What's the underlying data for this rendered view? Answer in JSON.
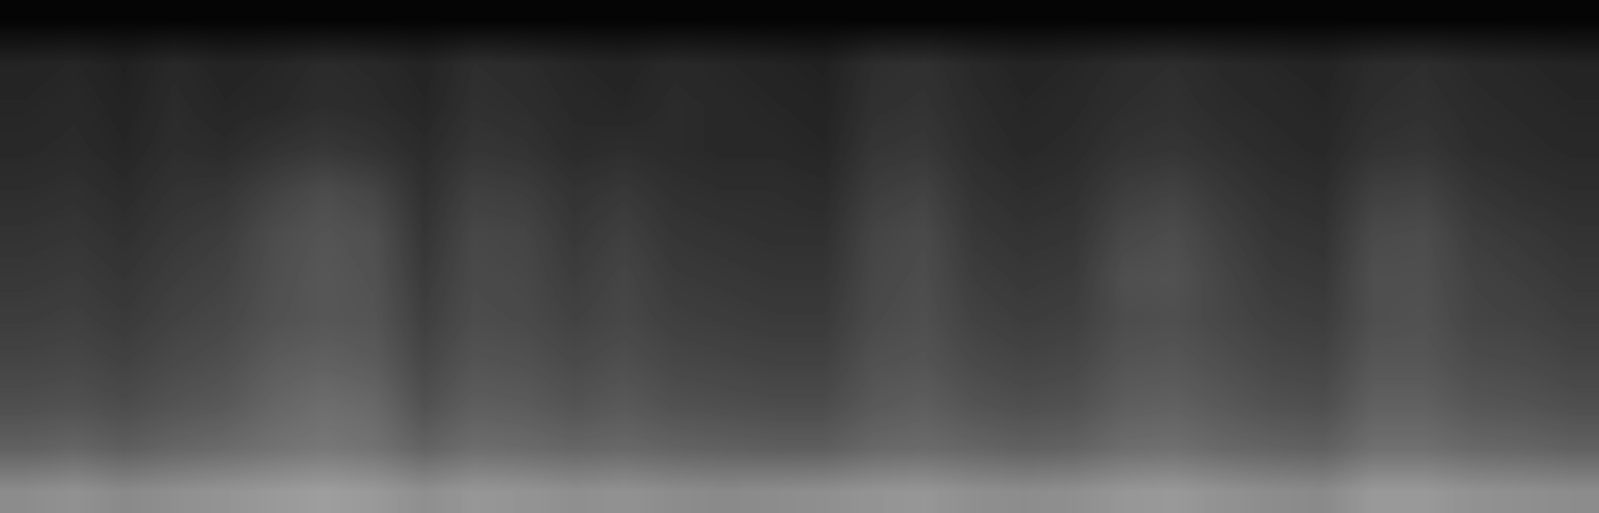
{
  "chart_data": {
    "type": "heatmap",
    "tick_labels": false,
    "color": "gray",
    "zlim": [
      0,
      100
    ],
    "cells": [
      [
        2,
        2,
        2,
        2,
        2,
        2,
        2,
        2,
        2,
        2,
        2,
        2,
        2,
        2,
        2,
        2,
        2,
        2,
        2,
        2,
        2,
        2,
        2,
        2,
        2,
        2,
        2,
        2,
        2,
        2,
        2,
        2
      ],
      [
        14,
        15,
        13,
        16,
        14,
        15,
        17,
        16,
        14,
        18,
        17,
        15,
        14,
        16,
        15,
        14,
        13,
        18,
        19,
        16,
        14,
        15,
        17,
        18,
        16,
        15,
        14,
        17,
        18,
        16,
        15,
        14
      ],
      [
        15,
        16,
        14,
        17,
        15,
        16,
        18,
        17,
        15,
        19,
        18,
        16,
        15,
        17,
        16,
        15,
        14,
        19,
        20,
        17,
        15,
        16,
        18,
        19,
        17,
        16,
        15,
        18,
        19,
        17,
        16,
        15
      ],
      [
        16,
        17,
        15,
        18,
        17,
        20,
        22,
        20,
        17,
        21,
        20,
        17,
        18,
        17,
        16,
        16,
        15,
        21,
        22,
        18,
        16,
        17,
        20,
        21,
        19,
        17,
        16,
        20,
        21,
        18,
        17,
        16
      ],
      [
        18,
        19,
        17,
        20,
        21,
        26,
        30,
        27,
        19,
        25,
        24,
        20,
        22,
        19,
        18,
        18,
        17,
        24,
        26,
        20,
        18,
        19,
        24,
        26,
        22,
        19,
        18,
        25,
        26,
        21,
        19,
        18
      ],
      [
        20,
        21,
        19,
        22,
        24,
        30,
        33,
        31,
        21,
        28,
        27,
        22,
        25,
        21,
        20,
        19,
        19,
        27,
        29,
        22,
        20,
        21,
        28,
        30,
        25,
        21,
        20,
        29,
        30,
        24,
        22,
        20
      ],
      [
        22,
        23,
        21,
        24,
        26,
        31,
        34,
        32,
        23,
        29,
        28,
        24,
        27,
        23,
        22,
        21,
        21,
        28,
        30,
        24,
        22,
        23,
        31,
        32,
        27,
        23,
        22,
        31,
        31,
        26,
        24,
        22
      ],
      [
        24,
        25,
        23,
        26,
        28,
        32,
        34,
        33,
        25,
        30,
        29,
        26,
        28,
        25,
        24,
        23,
        23,
        29,
        31,
        26,
        24,
        25,
        30,
        31,
        28,
        25,
        24,
        31,
        32,
        27,
        26,
        24
      ],
      [
        27,
        28,
        26,
        29,
        31,
        36,
        38,
        36,
        28,
        33,
        32,
        29,
        31,
        28,
        27,
        26,
        26,
        32,
        33,
        29,
        27,
        28,
        33,
        34,
        31,
        28,
        27,
        34,
        34,
        30,
        29,
        27
      ],
      [
        31,
        32,
        30,
        33,
        35,
        40,
        43,
        41,
        32,
        37,
        36,
        33,
        35,
        32,
        31,
        30,
        30,
        35,
        37,
        33,
        31,
        32,
        37,
        38,
        35,
        32,
        31,
        38,
        38,
        34,
        33,
        31
      ],
      [
        38,
        40,
        37,
        40,
        42,
        45,
        47,
        45,
        39,
        43,
        42,
        40,
        41,
        39,
        38,
        37,
        37,
        41,
        42,
        40,
        38,
        39,
        43,
        44,
        41,
        39,
        38,
        44,
        44,
        41,
        40,
        38
      ],
      [
        55,
        57,
        54,
        56,
        58,
        60,
        62,
        60,
        56,
        59,
        58,
        56,
        57,
        55,
        54,
        55,
        56,
        58,
        59,
        56,
        55,
        56,
        59,
        60,
        57,
        55,
        54,
        60,
        60,
        57,
        56,
        55
      ]
    ]
  }
}
